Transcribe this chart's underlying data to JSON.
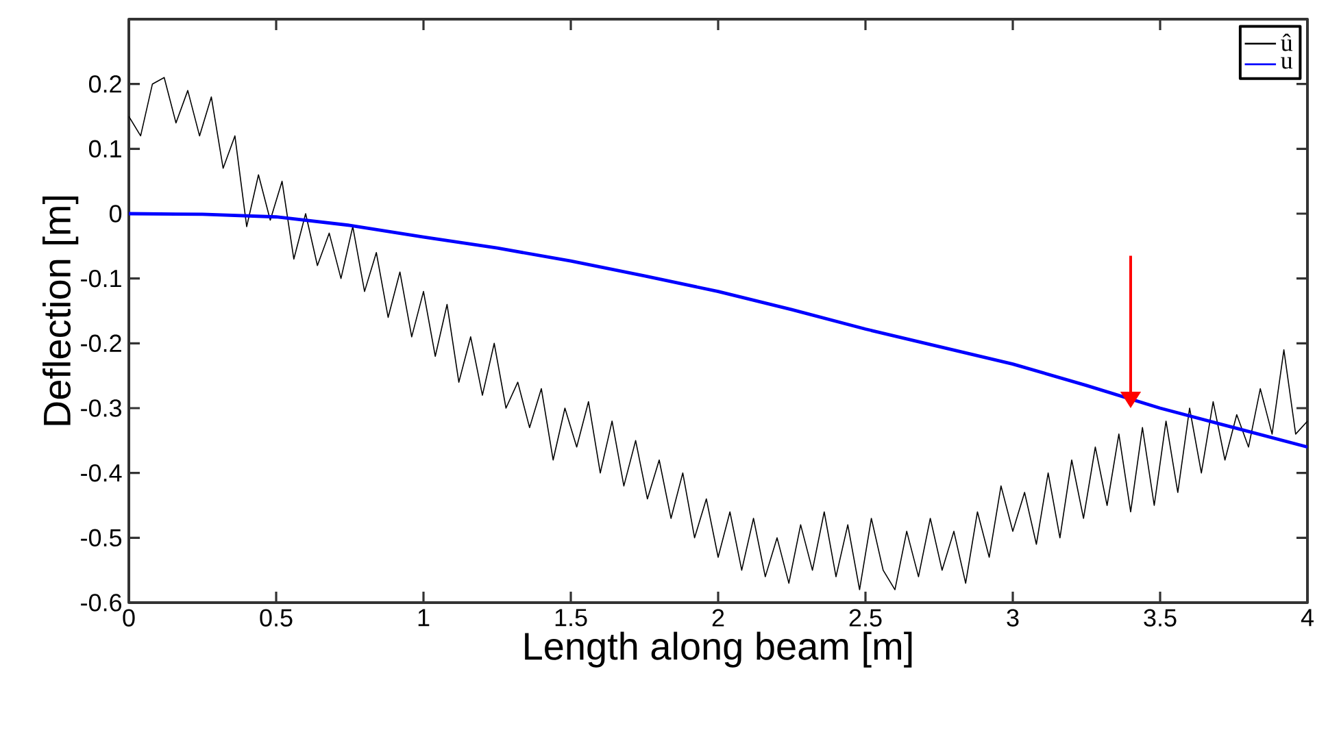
{
  "chart_data": {
    "type": "line",
    "xlabel": "Length along beam [m]",
    "ylabel": "Deflection [m]",
    "xlim": [
      0,
      4
    ],
    "ylim": [
      -0.6,
      0.3
    ],
    "xticks": [
      0,
      0.5,
      1,
      1.5,
      2,
      2.5,
      3,
      3.5,
      4
    ],
    "yticks": [
      -0.6,
      -0.5,
      -0.4,
      -0.3,
      -0.2,
      -0.1,
      0,
      0.1,
      0.2
    ],
    "grid": false,
    "legend": "top right",
    "marker": "none",
    "line_style": "solid",
    "series": [
      {
        "name": "û",
        "color": "#000000",
        "x": [
          0.0,
          0.04,
          0.08,
          0.12,
          0.16,
          0.2,
          0.24,
          0.28,
          0.32,
          0.36,
          0.4,
          0.44,
          0.48,
          0.52,
          0.56,
          0.6,
          0.64,
          0.68,
          0.72,
          0.76,
          0.8,
          0.84,
          0.88,
          0.92,
          0.96,
          1.0,
          1.04,
          1.08,
          1.12,
          1.16,
          1.2,
          1.24,
          1.28,
          1.32,
          1.36,
          1.4,
          1.44,
          1.48,
          1.52,
          1.56,
          1.6,
          1.64,
          1.68,
          1.72,
          1.76,
          1.8,
          1.84,
          1.88,
          1.92,
          1.96,
          2.0,
          2.04,
          2.08,
          2.12,
          2.16,
          2.2,
          2.24,
          2.28,
          2.32,
          2.36,
          2.4,
          2.44,
          2.48,
          2.52,
          2.56,
          2.6,
          2.64,
          2.68,
          2.72,
          2.76,
          2.8,
          2.84,
          2.88,
          2.92,
          2.96,
          3.0,
          3.04,
          3.08,
          3.12,
          3.16,
          3.2,
          3.24,
          3.28,
          3.32,
          3.36,
          3.4,
          3.44,
          3.48,
          3.52,
          3.56,
          3.6,
          3.64,
          3.68,
          3.72,
          3.76,
          3.8,
          3.84,
          3.88,
          3.92,
          3.96,
          4.0
        ],
        "values": [
          0.15,
          0.12,
          0.2,
          0.21,
          0.14,
          0.19,
          0.12,
          0.18,
          0.07,
          0.12,
          -0.02,
          0.06,
          -0.01,
          0.05,
          -0.07,
          0.0,
          -0.08,
          -0.03,
          -0.1,
          -0.02,
          -0.12,
          -0.06,
          -0.16,
          -0.09,
          -0.19,
          -0.12,
          -0.22,
          -0.14,
          -0.26,
          -0.19,
          -0.28,
          -0.2,
          -0.3,
          -0.26,
          -0.33,
          -0.27,
          -0.38,
          -0.3,
          -0.36,
          -0.29,
          -0.4,
          -0.32,
          -0.42,
          -0.35,
          -0.44,
          -0.38,
          -0.47,
          -0.4,
          -0.5,
          -0.44,
          -0.53,
          -0.46,
          -0.55,
          -0.47,
          -0.56,
          -0.5,
          -0.57,
          -0.48,
          -0.55,
          -0.46,
          -0.56,
          -0.48,
          -0.58,
          -0.47,
          -0.55,
          -0.58,
          -0.49,
          -0.56,
          -0.47,
          -0.55,
          -0.49,
          -0.57,
          -0.46,
          -0.53,
          -0.42,
          -0.49,
          -0.43,
          -0.51,
          -0.4,
          -0.5,
          -0.38,
          -0.47,
          -0.36,
          -0.45,
          -0.34,
          -0.46,
          -0.33,
          -0.45,
          -0.32,
          -0.43,
          -0.3,
          -0.4,
          -0.29,
          -0.38,
          -0.31,
          -0.36,
          -0.27,
          -0.34,
          -0.21,
          -0.34,
          -0.32
        ]
      },
      {
        "name": "u",
        "color": "#0000ff",
        "x": [
          0,
          0.25,
          0.5,
          0.75,
          1,
          1.25,
          1.5,
          1.75,
          2,
          2.25,
          2.5,
          2.75,
          3,
          3.25,
          3.5,
          3.75,
          4
        ],
        "values": [
          0,
          -0.001,
          -0.005,
          -0.018,
          -0.036,
          -0.053,
          -0.073,
          -0.096,
          -0.12,
          -0.148,
          -0.178,
          -0.205,
          -0.232,
          -0.265,
          -0.3,
          -0.33,
          -0.36
        ]
      }
    ]
  }
}
